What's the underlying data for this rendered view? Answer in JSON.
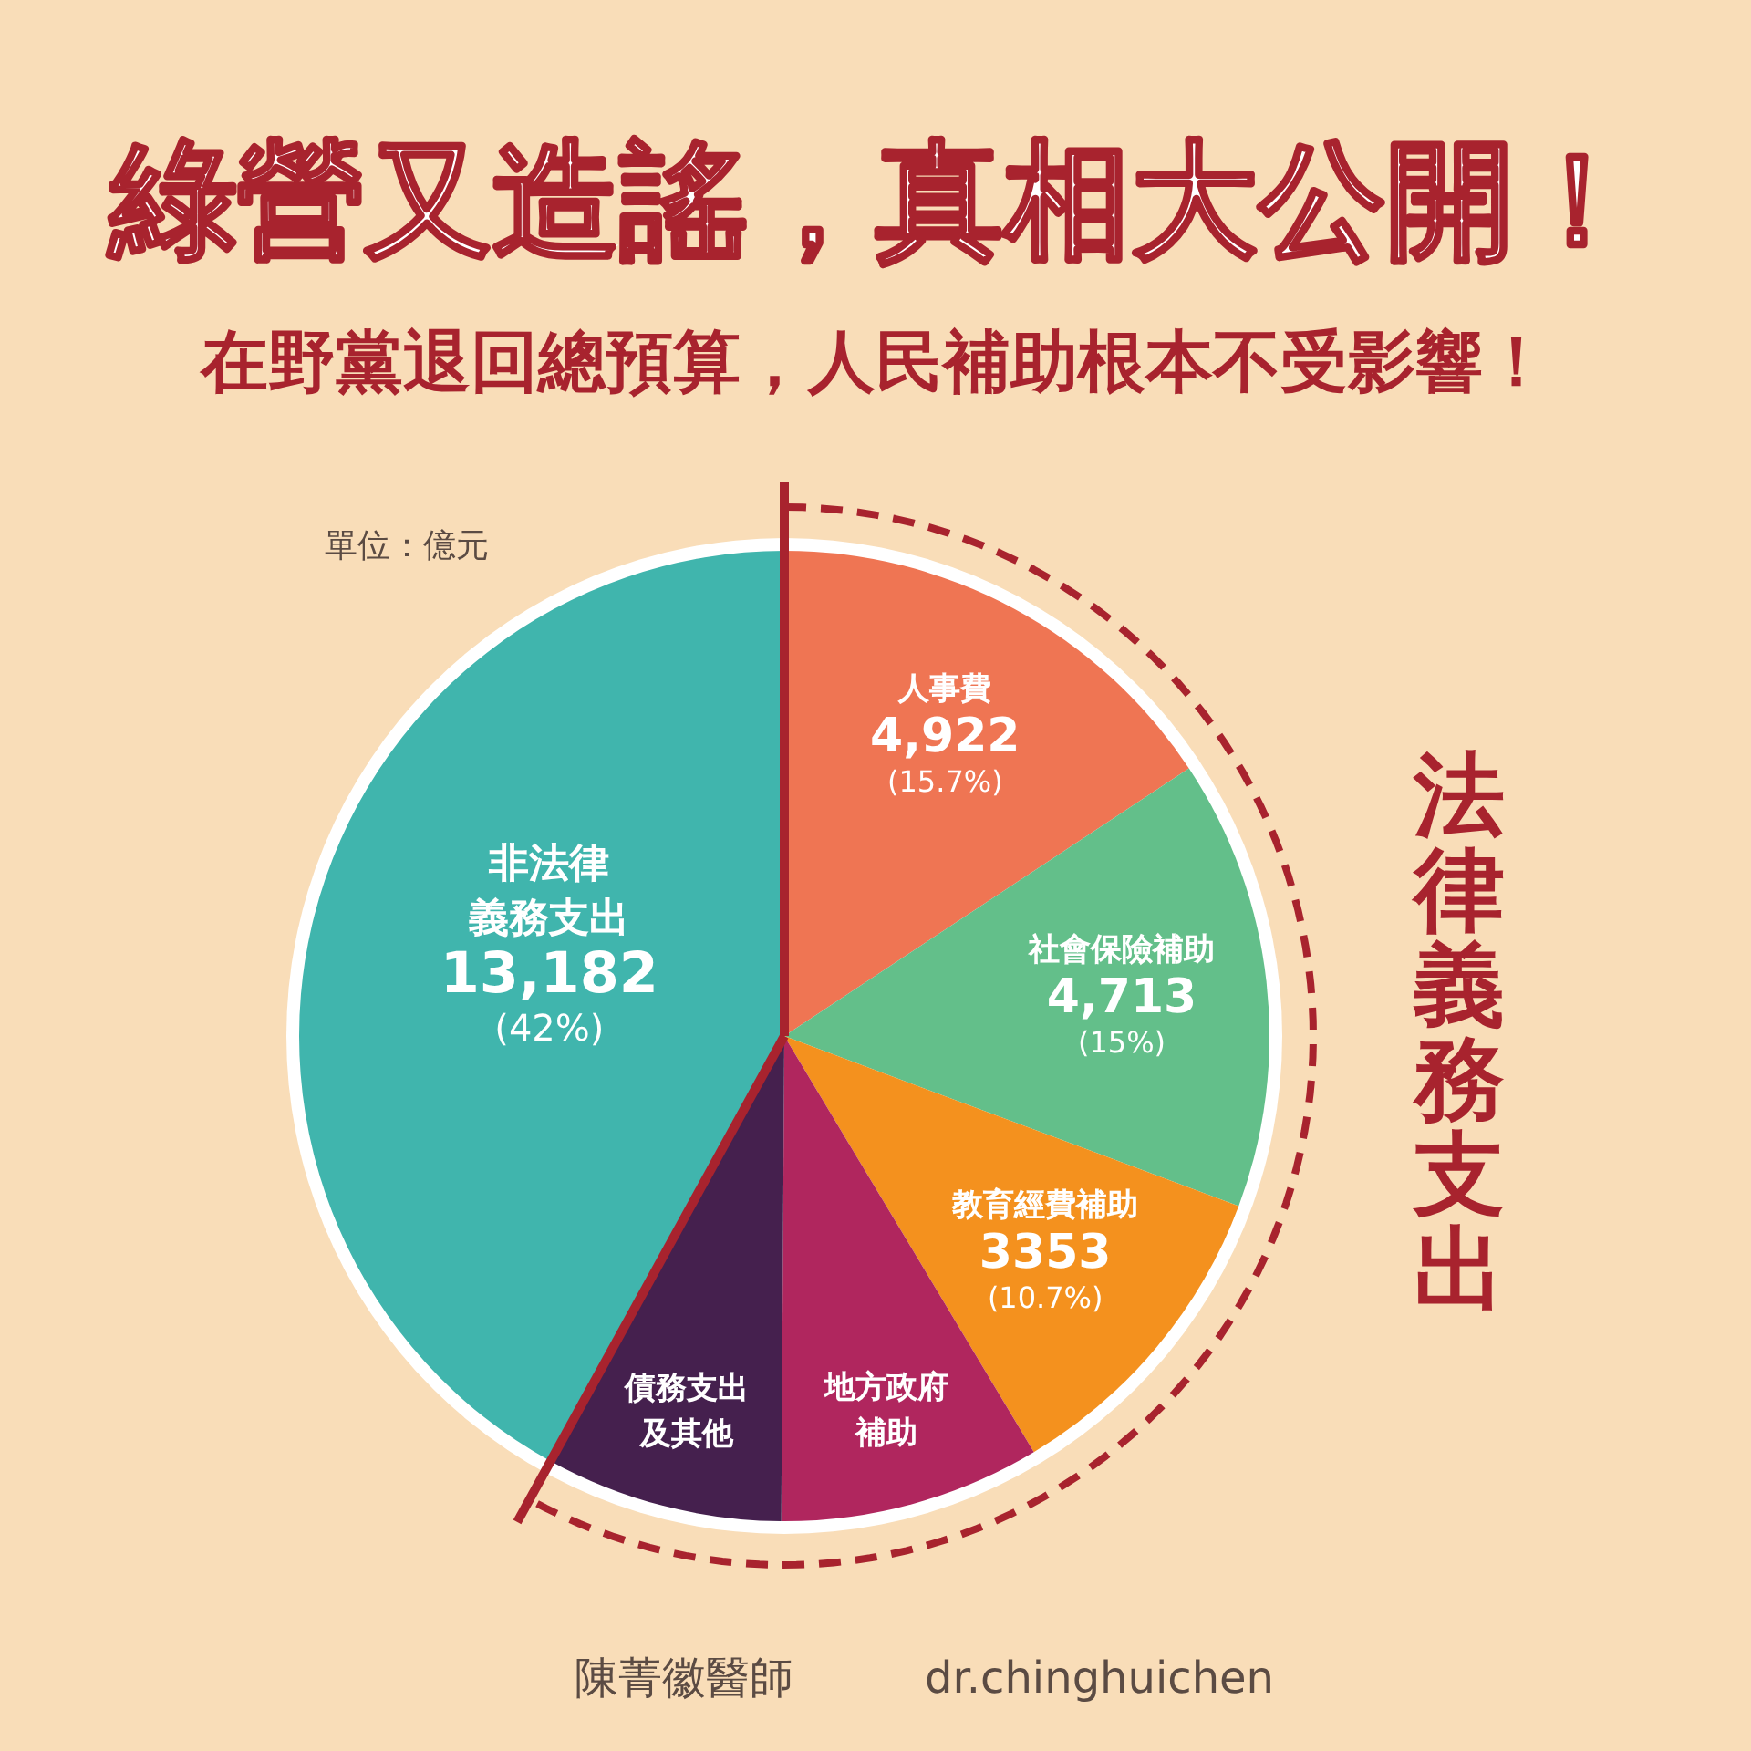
{
  "chart_data": {
    "type": "pie",
    "title": "綠營又造謠，真相大公開！",
    "subtitle": "在野黨退回總預算，人民補助根本不受影響！",
    "categories": [
      "人事費",
      "社會保險補助",
      "教育經費補助",
      "地方政府補助",
      "債務支出及其他",
      "非法律義務支出"
    ],
    "values": [
      15.7,
      15,
      10.7,
      8.7,
      7.9,
      42
    ],
    "colors": [
      "#ef7553",
      "#63bf8a",
      "#f4911e",
      "#b0265e",
      "#45204e",
      "#40b5ad"
    ],
    "value_labels": [
      "4,922\n(15.7%)",
      "4,713\n(15%)",
      "3353\n(10.7%)",
      null,
      null,
      "13,182\n(42%)"
    ],
    "annotations": [
      "單位：億元",
      "法律義務支出",
      "陳菁徽醫師",
      "dr.chinghuichen"
    ]
  }
}
